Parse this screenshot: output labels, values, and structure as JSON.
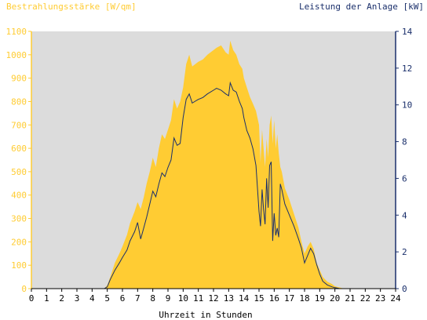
{
  "colors": {
    "irradiance": "#ffcc33",
    "power": "#1a2f6b",
    "plot_bg": "#dcdcdc",
    "left_axis_text": "#ffcc33",
    "right_axis_text": "#1a2f6b",
    "bottom_axis_text": "#000000"
  },
  "chart_data": {
    "type": "area",
    "title": "",
    "xlabel": "Uhrzeit in Stunden",
    "ylabel_left": "Bestrahlungsstärke [W/qm]",
    "ylabel_right": "Leistung der Anlage [kW]",
    "xlim": [
      0,
      24
    ],
    "ylim_left": [
      0,
      1100
    ],
    "ylim_right": [
      0,
      14
    ],
    "x_ticks": [
      "0",
      "1",
      "2",
      "3",
      "4",
      "5",
      "6",
      "7",
      "8",
      "9",
      "10",
      "11",
      "12",
      "13",
      "14",
      "15",
      "16",
      "17",
      "18",
      "19",
      "20",
      "21",
      "22",
      "23",
      "24"
    ],
    "y_left_ticks": [
      "0",
      "100",
      "200",
      "300",
      "400",
      "500",
      "600",
      "700",
      "800",
      "900",
      "1000",
      "1100"
    ],
    "y_right_ticks": [
      "0",
      "2",
      "4",
      "6",
      "8",
      "10",
      "12",
      "14"
    ],
    "grid": false,
    "legend": "none",
    "series": [
      {
        "name": "Bestrahlungsstärke [W/qm]",
        "axis": "left",
        "kind": "area",
        "x": [
          0,
          4.8,
          5.0,
          5.2,
          5.5,
          5.8,
          6.0,
          6.3,
          6.5,
          6.8,
          7.0,
          7.2,
          7.4,
          7.6,
          7.8,
          8.0,
          8.2,
          8.4,
          8.6,
          8.8,
          9.0,
          9.2,
          9.4,
          9.6,
          9.8,
          10.0,
          10.2,
          10.4,
          10.6,
          10.8,
          11.0,
          11.3,
          11.6,
          12.0,
          12.2,
          12.5,
          12.8,
          13.0,
          13.1,
          13.3,
          13.5,
          13.7,
          13.9,
          14.0,
          14.2,
          14.4,
          14.6,
          14.8,
          15.0,
          15.1,
          15.2,
          15.3,
          15.4,
          15.5,
          15.6,
          15.7,
          15.8,
          15.9,
          16.0,
          16.1,
          16.2,
          16.3,
          16.4,
          16.5,
          16.7,
          17.0,
          17.3,
          17.6,
          17.8,
          18.0,
          18.2,
          18.4,
          18.6,
          18.8,
          19.0,
          19.2,
          19.5,
          19.8,
          20.0,
          20.3,
          20.6,
          21.0,
          24
        ],
        "values": [
          0,
          0,
          15,
          50,
          110,
          150,
          180,
          230,
          280,
          330,
          370,
          340,
          390,
          450,
          500,
          560,
          520,
          600,
          660,
          640,
          680,
          720,
          810,
          770,
          800,
          860,
          960,
          1000,
          950,
          960,
          970,
          980,
          1000,
          1020,
          1030,
          1040,
          1010,
          1000,
          1060,
          1020,
          1000,
          960,
          940,
          900,
          860,
          820,
          790,
          760,
          700,
          540,
          680,
          600,
          520,
          640,
          560,
          700,
          740,
          620,
          720,
          600,
          660,
          580,
          520,
          500,
          430,
          380,
          320,
          260,
          200,
          150,
          180,
          200,
          170,
          110,
          80,
          50,
          30,
          20,
          10,
          5,
          0,
          0,
          0
        ]
      },
      {
        "name": "Leistung der Anlage [kW]",
        "axis": "right",
        "kind": "line",
        "x": [
          0,
          4.8,
          5.0,
          5.2,
          5.5,
          5.8,
          6.0,
          6.3,
          6.5,
          6.8,
          7.0,
          7.2,
          7.4,
          7.6,
          7.8,
          8.0,
          8.2,
          8.4,
          8.6,
          8.8,
          9.0,
          9.2,
          9.4,
          9.6,
          9.8,
          10.0,
          10.2,
          10.4,
          10.6,
          10.8,
          11.0,
          11.3,
          11.6,
          12.0,
          12.2,
          12.5,
          12.8,
          13.0,
          13.1,
          13.3,
          13.5,
          13.7,
          13.9,
          14.0,
          14.2,
          14.4,
          14.6,
          14.8,
          15.0,
          15.1,
          15.2,
          15.3,
          15.4,
          15.5,
          15.6,
          15.7,
          15.8,
          15.9,
          16.0,
          16.1,
          16.2,
          16.3,
          16.4,
          16.5,
          16.7,
          17.0,
          17.3,
          17.6,
          17.8,
          18.0,
          18.2,
          18.4,
          18.6,
          18.8,
          19.0,
          19.2,
          19.5,
          19.8,
          20.0,
          20.3,
          20.6,
          21.0,
          24
        ],
        "values": [
          0,
          0,
          0.1,
          0.5,
          1.0,
          1.4,
          1.7,
          2.1,
          2.6,
          3.1,
          3.6,
          2.7,
          3.3,
          3.9,
          4.6,
          5.3,
          5.0,
          5.7,
          6.3,
          6.1,
          6.6,
          7.0,
          8.2,
          7.8,
          7.9,
          9.3,
          10.3,
          10.6,
          10.1,
          10.2,
          10.3,
          10.4,
          10.6,
          10.8,
          10.9,
          10.8,
          10.6,
          10.5,
          11.2,
          10.8,
          10.7,
          10.2,
          9.8,
          9.3,
          8.6,
          8.2,
          7.6,
          6.7,
          4.2,
          3.4,
          5.4,
          4.3,
          3.5,
          6.0,
          4.4,
          6.7,
          6.9,
          2.6,
          4.1,
          2.9,
          3.3,
          2.8,
          5.7,
          5.4,
          4.6,
          4.0,
          3.4,
          2.7,
          2.2,
          1.4,
          1.8,
          2.2,
          1.9,
          1.3,
          0.8,
          0.4,
          0.2,
          0.1,
          0.05,
          0,
          0,
          0,
          0
        ]
      }
    ]
  }
}
